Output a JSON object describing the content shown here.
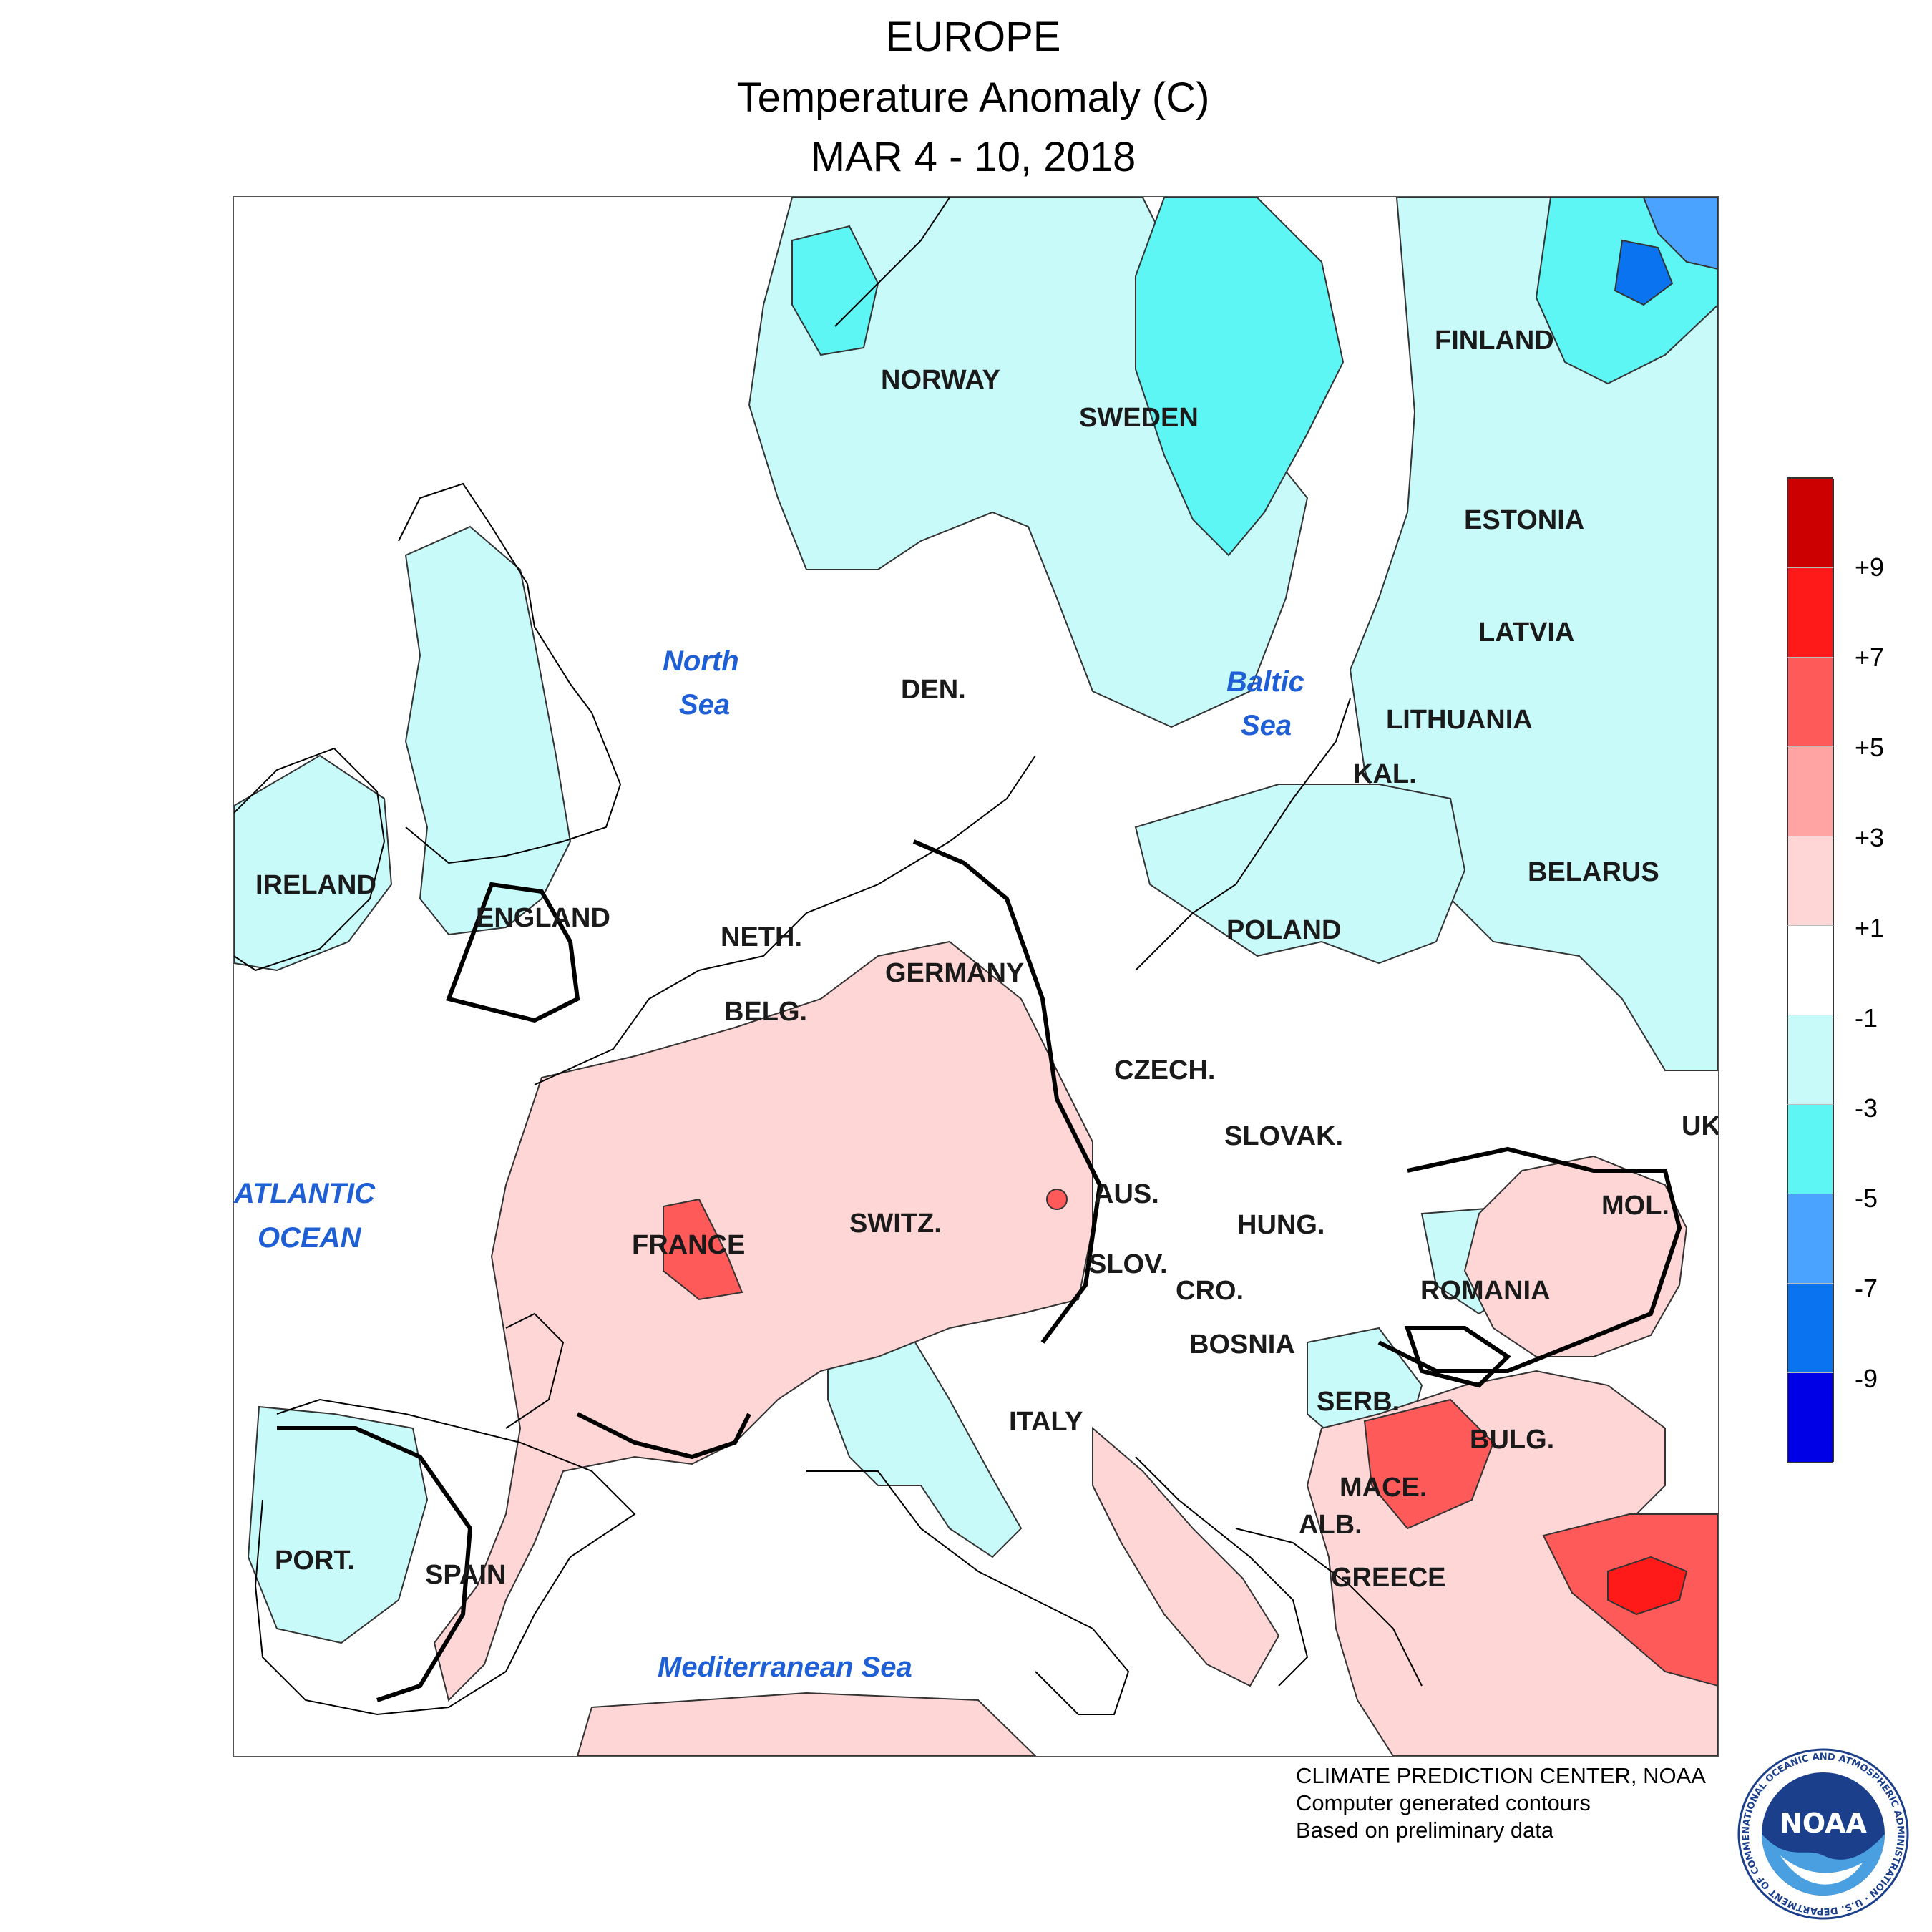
{
  "title": {
    "line1": "EUROPE",
    "line2": "Temperature Anomaly (C)",
    "line3": "MAR 4 - 10, 2018"
  },
  "map_labels": {
    "countries": {
      "norway": "NORWAY",
      "sweden": "SWEDEN",
      "finland": "FINLAND",
      "estonia": "ESTONIA",
      "latvia": "LATVIA",
      "lithuania": "LITHUANIA",
      "kaliningrad": "KAL.",
      "belarus": "BELARUS",
      "poland": "POLAND",
      "denmark": "DEN.",
      "ireland": "IRELAND",
      "england": "ENGLAND",
      "netherlands": "NETH.",
      "belgium": "BELG.",
      "germany": "GERMANY",
      "czech": "CZECH.",
      "slovakia": "SLOVAK.",
      "ukraine": "UK",
      "moldova": "MOL.",
      "austria": "AUS.",
      "hungary": "HUNG.",
      "romania": "ROMANIA",
      "switzerland": "SWITZ.",
      "france": "FRANCE",
      "slovenia": "SLOV.",
      "croatia": "CRO.",
      "bosnia": "BOSNIA",
      "serbia": "SERB.",
      "bulgaria": "BULG.",
      "macedonia": "MACE.",
      "albania": "ALB.",
      "greece": "GREECE",
      "italy": "ITALY",
      "portugal": "PORT.",
      "spain": "SPAIN"
    },
    "seas": {
      "north_sea_1": "North",
      "north_sea_2": "Sea",
      "baltic_1": "Baltic",
      "baltic_2": "Sea",
      "atlantic_1": "ATLANTIC",
      "atlantic_2": "OCEAN",
      "mediterranean": "Mediterranean Sea"
    }
  },
  "legend": {
    "colors": [
      "#cc0000",
      "#ff1a1a",
      "#ff5a5a",
      "#ffa3a3",
      "#ffd6d6",
      "#ffffff",
      "#c8fafa",
      "#5ef5f5",
      "#4aa3ff",
      "#0a74f0",
      "#0000e6"
    ],
    "ticks": [
      "+9",
      "+7",
      "+5",
      "+3",
      "+1",
      "-1",
      "-3",
      "-5",
      "-7",
      "-9"
    ]
  },
  "credits": {
    "line1": "CLIMATE PREDICTION CENTER, NOAA",
    "line2": "Computer generated contours",
    "line3": "Based on preliminary data"
  },
  "logo": {
    "text": "NOAA",
    "ring_text": "NATIONAL OCEANIC AND ATMOSPHERIC ADMINISTRATION · U.S. DEPARTMENT OF COMMERCE"
  }
}
